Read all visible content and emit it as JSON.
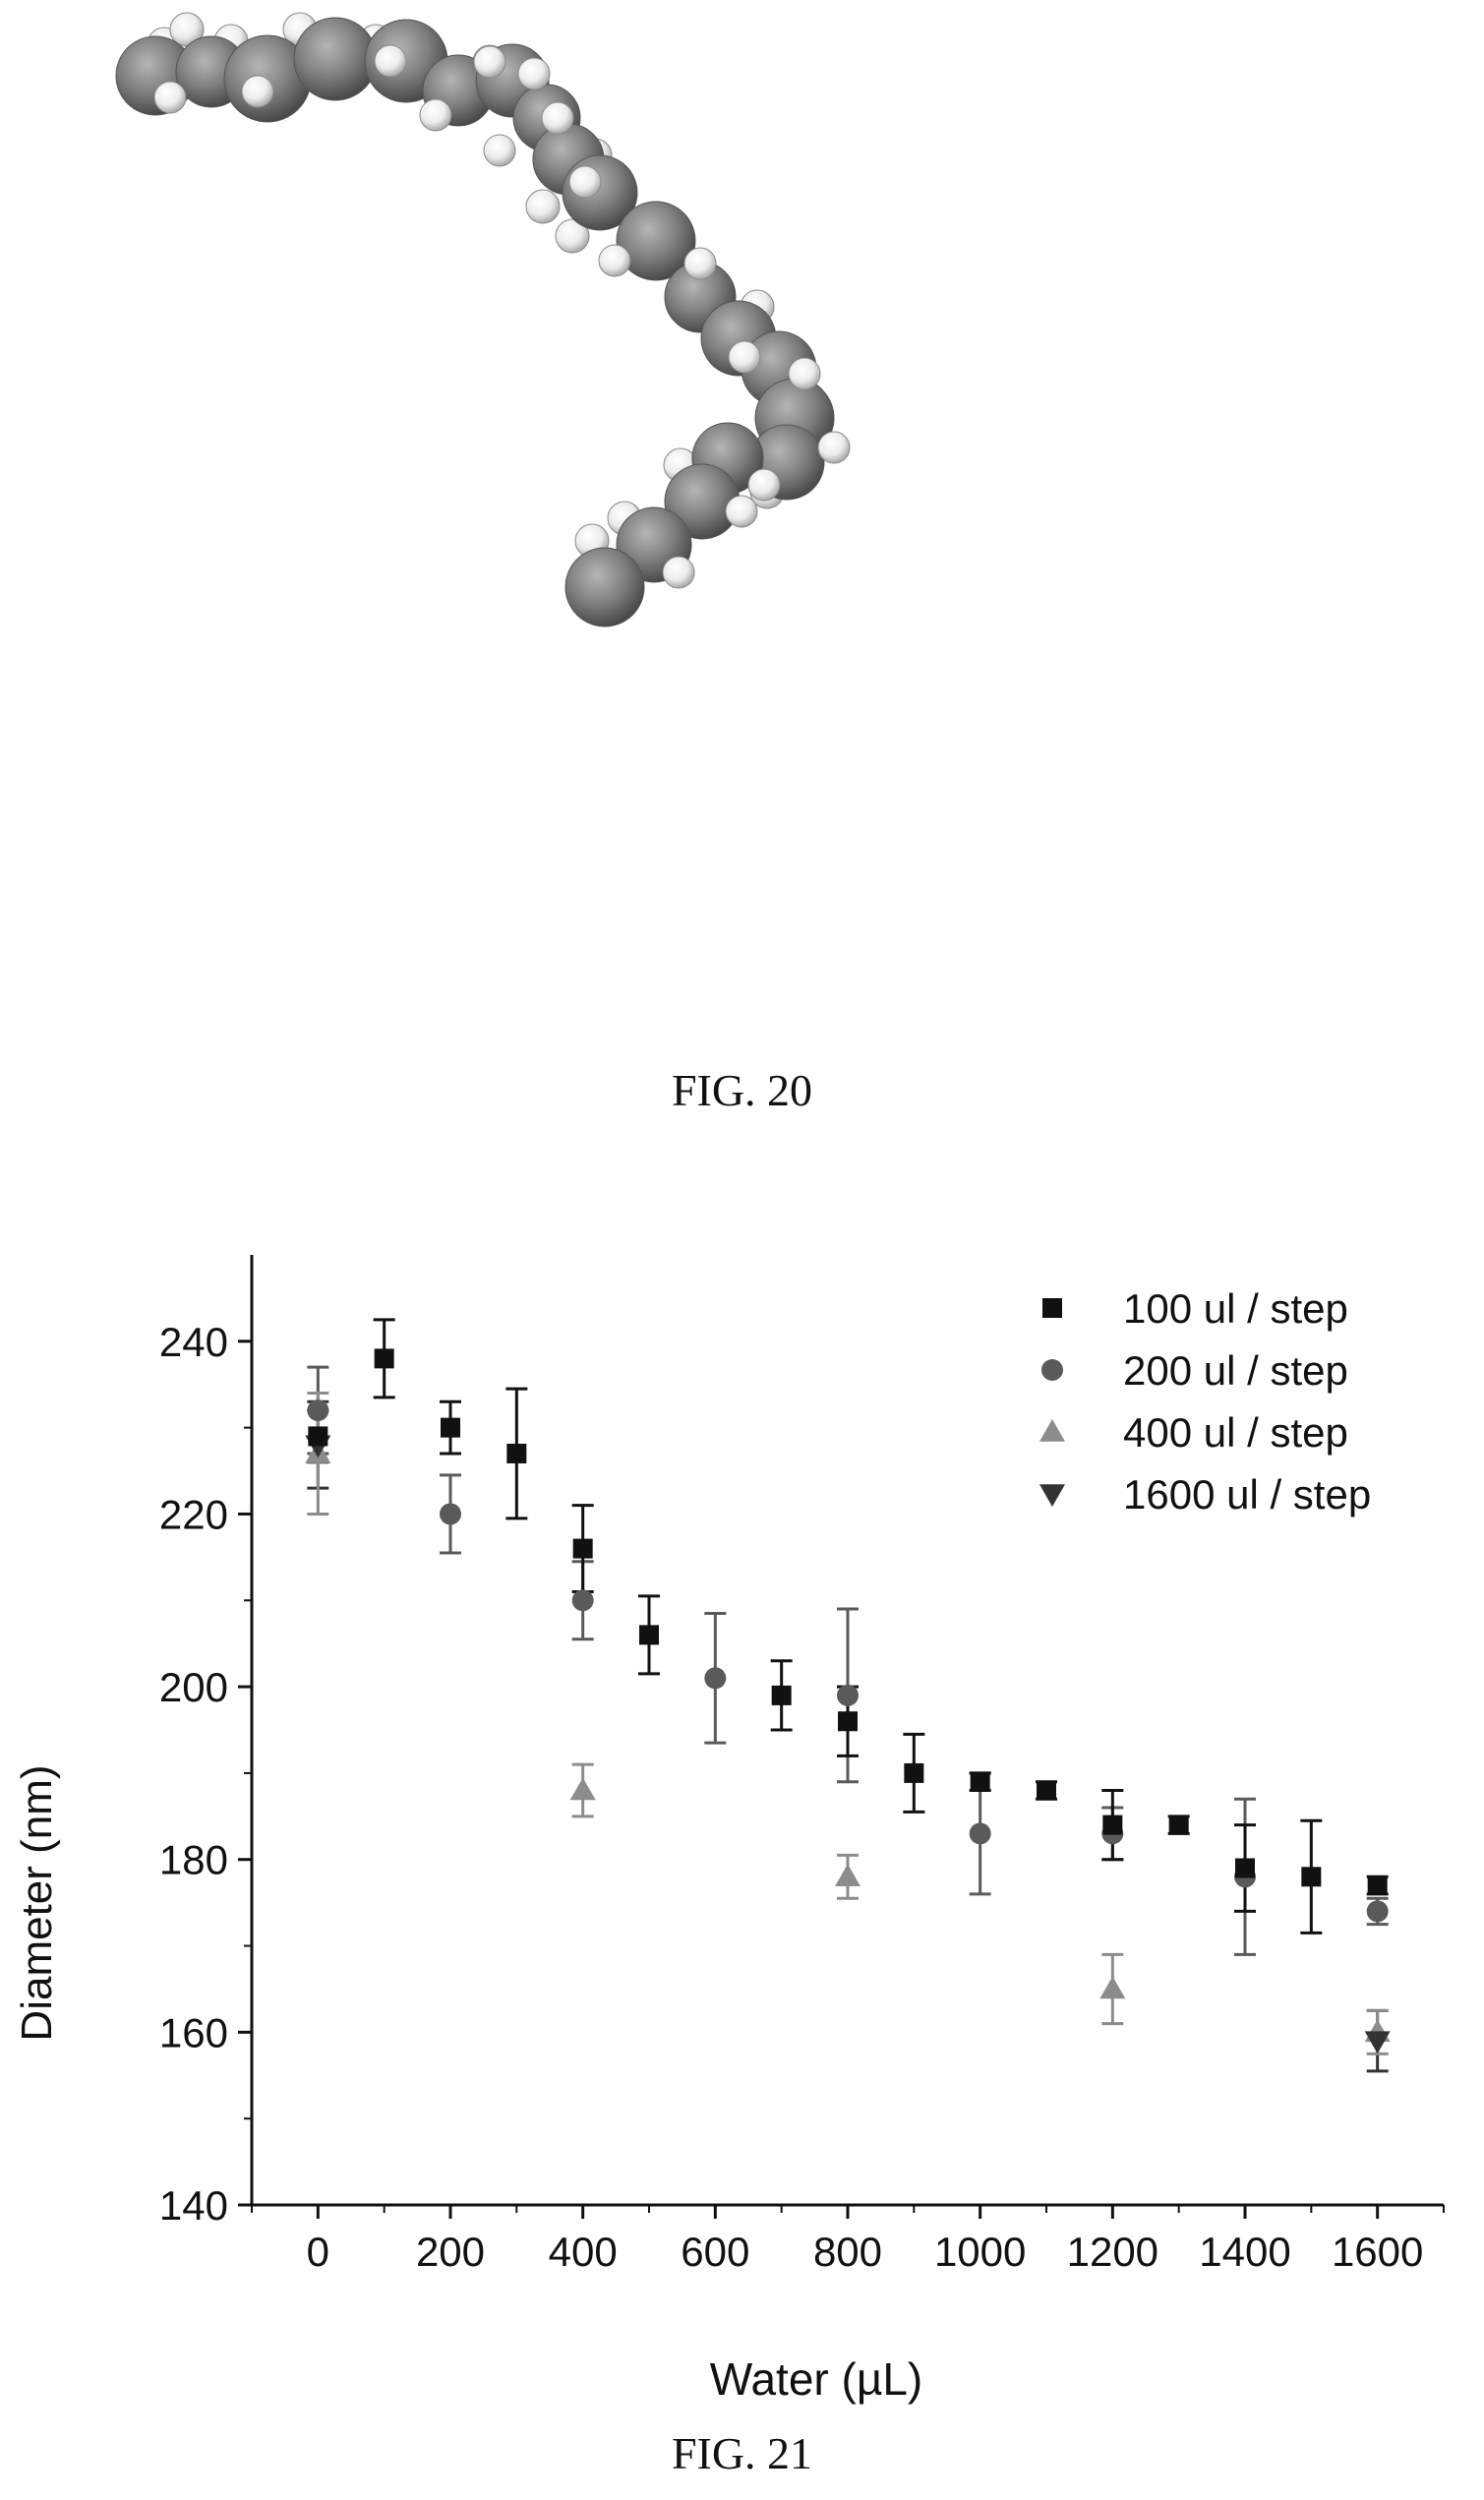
{
  "figure_20": {
    "caption": "FIG. 20"
  },
  "figure_21": {
    "caption": "FIG. 21"
  },
  "chart_data": {
    "type": "scatter",
    "xlabel": "Water (µL)",
    "ylabel": "Diameter (nm)",
    "xlim": [
      -100,
      1700
    ],
    "ylim": [
      140,
      250
    ],
    "xticks": [
      0,
      200,
      400,
      600,
      800,
      1000,
      1200,
      1400,
      1600
    ],
    "yticks": [
      140,
      160,
      180,
      200,
      220,
      240
    ],
    "legend_position": "top-right",
    "grid": false,
    "series": [
      {
        "name": "100 ul / step",
        "marker": "square",
        "color": "#111111",
        "points": [
          {
            "x": 0,
            "y": 229,
            "err": 3
          },
          {
            "x": 100,
            "y": 238,
            "err": 4.5
          },
          {
            "x": 200,
            "y": 230,
            "err": 3
          },
          {
            "x": 300,
            "y": 227,
            "err": 7.5
          },
          {
            "x": 400,
            "y": 216,
            "err": 5
          },
          {
            "x": 500,
            "y": 206,
            "err": 4.5
          },
          {
            "x": 700,
            "y": 199,
            "err": 4
          },
          {
            "x": 800,
            "y": 196,
            "err": 4
          },
          {
            "x": 900,
            "y": 190,
            "err": 4.5
          },
          {
            "x": 1000,
            "y": 189,
            "err": 1
          },
          {
            "x": 1100,
            "y": 188,
            "err": 1
          },
          {
            "x": 1200,
            "y": 184,
            "err": 4
          },
          {
            "x": 1300,
            "y": 184,
            "err": 1
          },
          {
            "x": 1400,
            "y": 179,
            "err": 5
          },
          {
            "x": 1500,
            "y": 178,
            "err": 6.5
          },
          {
            "x": 1600,
            "y": 177,
            "err": 1
          }
        ]
      },
      {
        "name": "200 ul / step",
        "marker": "circle",
        "color": "#5a5a5a",
        "points": [
          {
            "x": 0,
            "y": 232,
            "err": 5
          },
          {
            "x": 200,
            "y": 220,
            "err": 4.5
          },
          {
            "x": 400,
            "y": 210,
            "err": 4.5
          },
          {
            "x": 600,
            "y": 201,
            "err": 7.5
          },
          {
            "x": 800,
            "y": 199,
            "err": 10
          },
          {
            "x": 1000,
            "y": 183,
            "err": 7
          },
          {
            "x": 1200,
            "y": 183,
            "err": 3
          },
          {
            "x": 1400,
            "y": 178,
            "err": 9
          },
          {
            "x": 1600,
            "y": 174,
            "err": 1.5
          }
        ]
      },
      {
        "name": "400 ul / step",
        "marker": "triangle-up",
        "color": "#8c8c8c",
        "points": [
          {
            "x": 0,
            "y": 227,
            "err": 7
          },
          {
            "x": 400,
            "y": 188,
            "err": 3
          },
          {
            "x": 800,
            "y": 178,
            "err": 2.5
          },
          {
            "x": 1200,
            "y": 165,
            "err": 4
          },
          {
            "x": 1600,
            "y": 160,
            "err": 2.5
          }
        ]
      },
      {
        "name": "1600 ul / step",
        "marker": "triangle-down",
        "color": "#333333",
        "points": [
          {
            "x": 0,
            "y": 228,
            "err": 5
          },
          {
            "x": 1600,
            "y": 159,
            "err": 3.5
          }
        ]
      }
    ]
  }
}
